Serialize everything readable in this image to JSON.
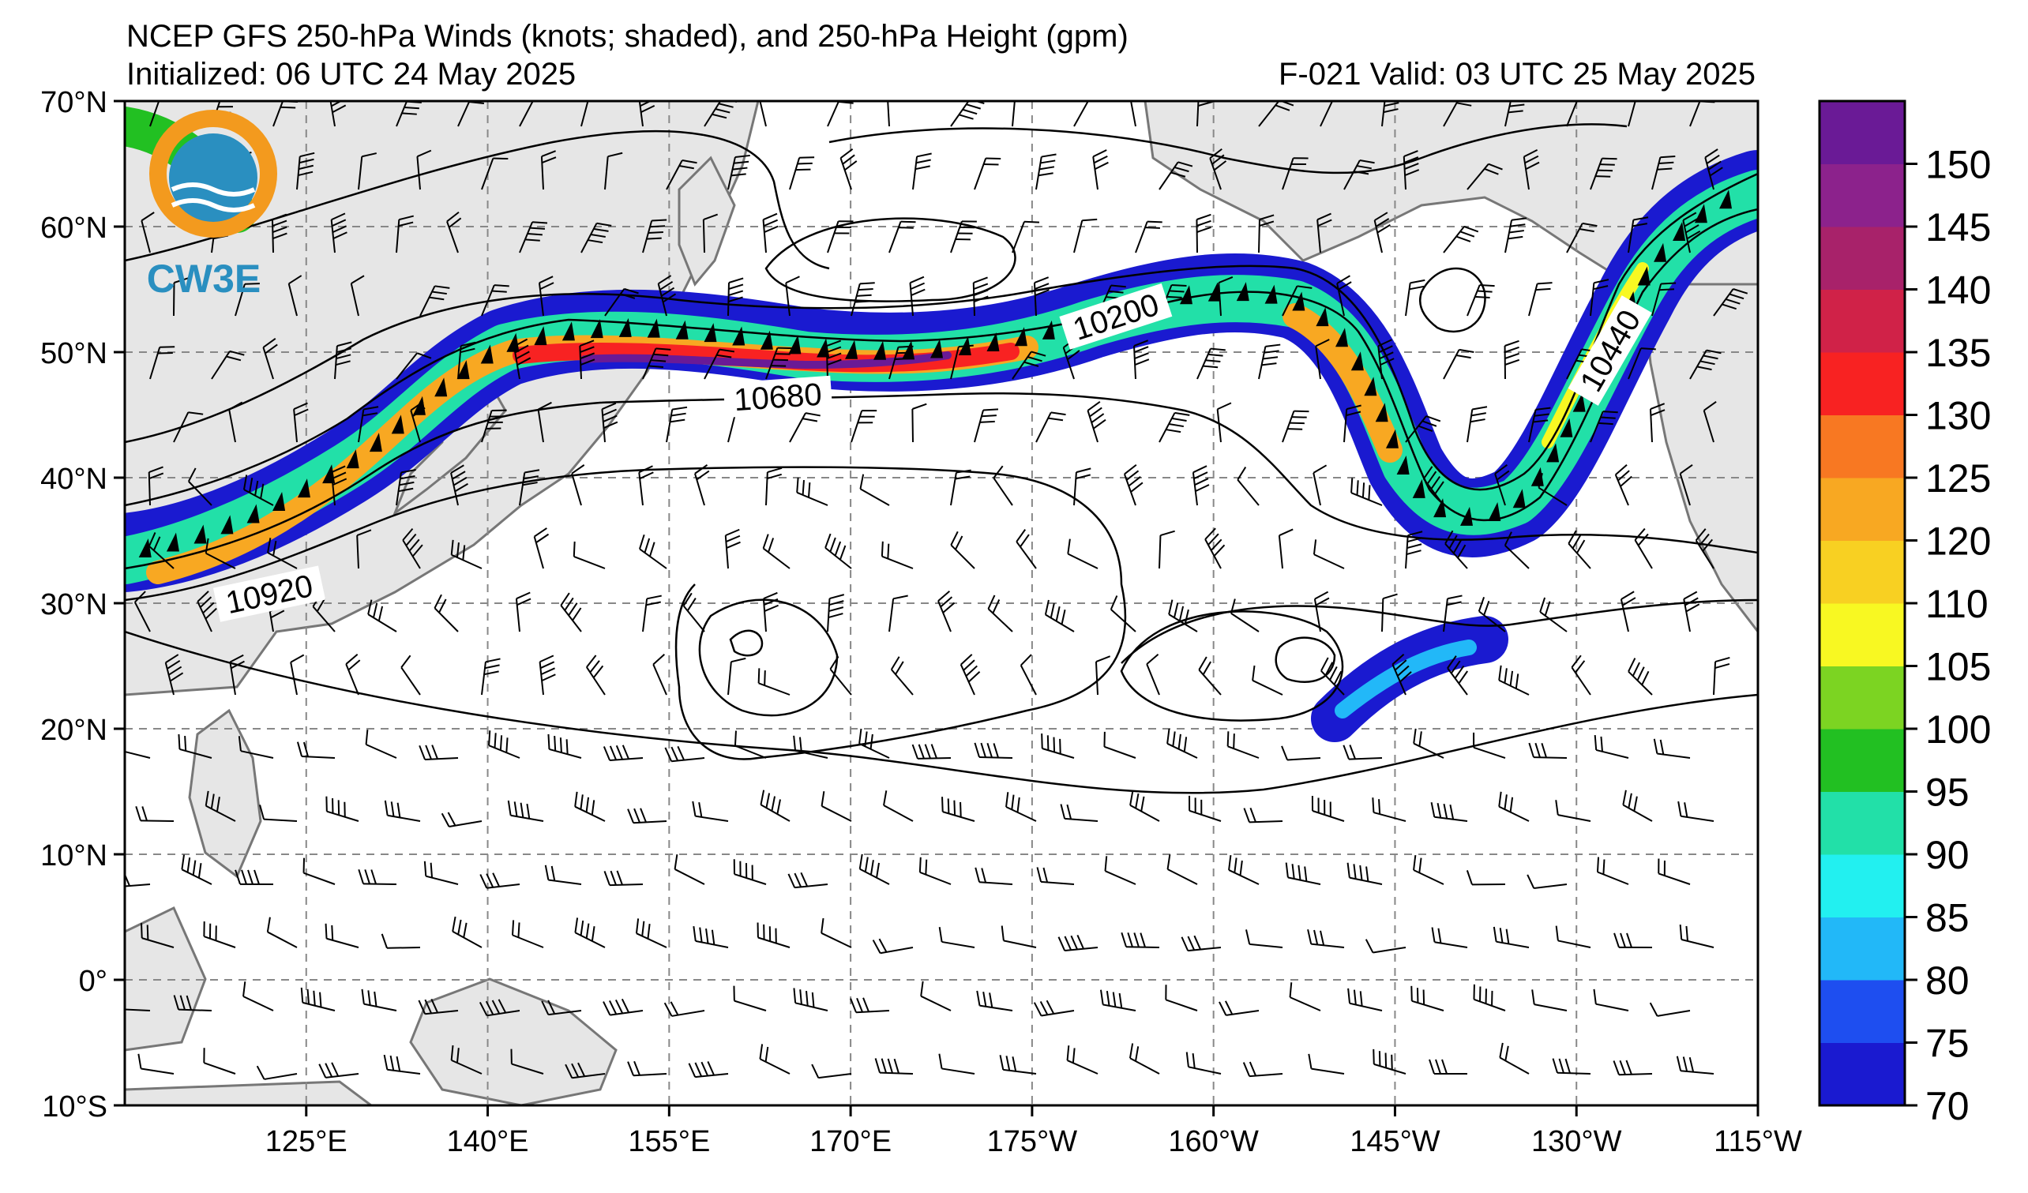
{
  "header": {
    "title": "NCEP GFS 250-hPa Winds (knots; shaded), and 250-hPa Height (gpm)",
    "initialized": "Initialized: 06 UTC 24 May 2025",
    "valid": "F-021  Valid: 03 UTC 25 May 2025"
  },
  "logo": {
    "text": "CW3E",
    "color": "#2a8fc0",
    "accent": "#f39a1e"
  },
  "map": {
    "lat_range": [
      -10,
      70
    ],
    "lon_range_east": [
      110,
      245
    ],
    "lat_ticks": [
      "70°N",
      "60°N",
      "50°N",
      "40°N",
      "30°N",
      "20°N",
      "10°N",
      "0°",
      "10°S"
    ],
    "lon_ticks": [
      "125°E",
      "140°E",
      "155°E",
      "170°E",
      "175°W",
      "160°W",
      "145°W",
      "130°W",
      "115°W"
    ],
    "gridlines": true,
    "land_color": "#e6e6e6",
    "coast_color": "#777777"
  },
  "contour_labels": [
    {
      "text": "10200",
      "lon": 192,
      "lat": 52.6
    },
    {
      "text": "10680",
      "lon": 164,
      "lat": 46.2
    },
    {
      "text": "10920",
      "lon": 122,
      "lat": 30.5
    },
    {
      "text": "10440",
      "lon": 233,
      "lat": 50
    }
  ],
  "colorbar": {
    "labels": [
      "70",
      "75",
      "80",
      "85",
      "90",
      "95",
      "100",
      "105",
      "110",
      "120",
      "125",
      "130",
      "135",
      "140",
      "145",
      "150"
    ],
    "colors": [
      "#1a1ad0",
      "#1e4ef0",
      "#22b8f8",
      "#22f0f0",
      "#22e0a8",
      "#22c022",
      "#7cd422",
      "#f8f822",
      "#f8d022",
      "#f8a822",
      "#f87822",
      "#f82222",
      "#d02248",
      "#a8226a",
      "#8c228c",
      "#6a1a96"
    ]
  }
}
